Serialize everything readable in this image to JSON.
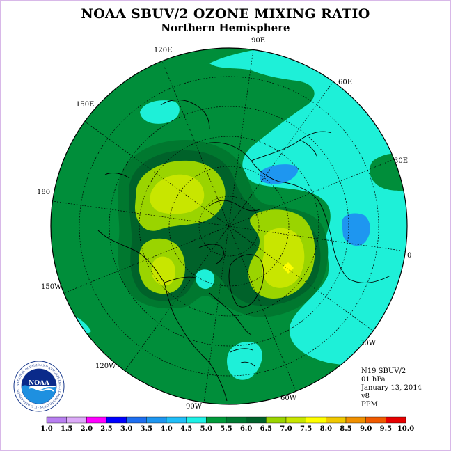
{
  "title": "NOAA SBUV/2 OZONE MIXING RATIO",
  "subtitle": "Northern Hemisphere",
  "longitude_labels": [
    {
      "text": "90E"
    },
    {
      "text": "60E"
    },
    {
      "text": "120E"
    },
    {
      "text": "150E"
    },
    {
      "text": "30E"
    },
    {
      "text": "180"
    },
    {
      "text": "0"
    },
    {
      "text": "150W"
    },
    {
      "text": "30W"
    },
    {
      "text": "120W"
    },
    {
      "text": "60W"
    },
    {
      "text": "90W"
    }
  ],
  "info": {
    "satellite": "N19 SBUV/2",
    "level": "01 hPa",
    "date": "January 13, 2014",
    "version": "v8",
    "units": "PPM"
  },
  "logo": {
    "text": "NOAA",
    "ring_text": "NATIONAL OCEANIC AND ATMOSPHERIC ADMINISTRATION · U.S. DEPARTMENT OF COMMERCE"
  },
  "colorbar": {
    "ticks": [
      "1.0",
      "1.5",
      "2.0",
      "2.5",
      "3.0",
      "3.5",
      "4.0",
      "4.5",
      "5.0",
      "5.5",
      "6.0",
      "6.5",
      "7.0",
      "7.5",
      "8.0",
      "8.5",
      "9.0",
      "9.5",
      "10.0"
    ],
    "colors": [
      "#b87ff0",
      "#dcaaf8",
      "#ff00ff",
      "#0000ff",
      "#1e6ef0",
      "#1e96f0",
      "#20bef8",
      "#1ef0e6",
      "#009a3a",
      "#007a32",
      "#00622a",
      "#9ad400",
      "#c8e600",
      "#ffff00",
      "#f0c800",
      "#f09000",
      "#f05a00",
      "#e60000",
      "#8c5a3c"
    ]
  },
  "map_colors": {
    "ocean_green": "#008e3a",
    "mid_green": "#00782f",
    "dark_green": "#00622a",
    "cyan": "#1ef0d8",
    "blue": "#1e96f0",
    "yellow_green": "#9ad400",
    "lime": "#c8e600",
    "yellow": "#ffff00"
  }
}
